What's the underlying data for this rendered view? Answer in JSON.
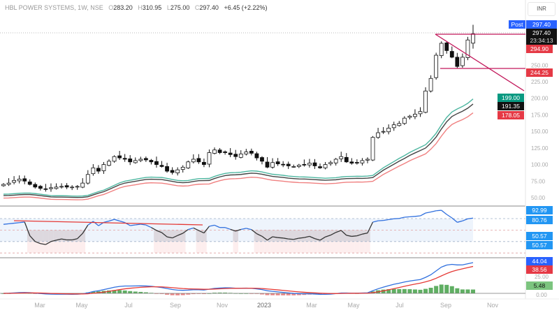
{
  "header": {
    "symbol": "HBL POWER SYSTEMS, 1W, NSE",
    "open_key": "O",
    "open": "283.20",
    "high_key": "H",
    "high": "310.95",
    "low_key": "L",
    "low": "275.00",
    "close_key": "C",
    "close": "297.40",
    "change": "+6.45 (+2.22%)"
  },
  "currency": "INR",
  "price_labels": {
    "post_tag": "Post",
    "post_price": "297.40",
    "last_price": "297.40",
    "countdown": "23:34:13",
    "alert_1": "294.90",
    "support": "244.25",
    "ema_fast": "199.00",
    "ema_mid": "191.35",
    "ema_slow": "178.05"
  },
  "rsi_labels": [
    "92.99",
    "80.76",
    "50.57",
    "50.57"
  ],
  "macd_labels": {
    "macd": "44.04",
    "signal": "38.56",
    "tick": "25.00",
    "hist": "5.48",
    "zero": "0.00"
  },
  "colors": {
    "ema_fast": "#4db6a0",
    "ema_mid": "#444444",
    "ema_slow": "#f08080",
    "trend": "#c2185b",
    "rsi_high": "#2f6fde",
    "rsi_low": "#333333",
    "macd": "#2f6fde",
    "signal": "#e53935",
    "hist_up": "#43a047",
    "hist_down": "#e57373"
  },
  "chart_data": {
    "type": "candlestick",
    "title": "HBL POWER SYSTEMS, 1W, NSE",
    "ylim": [
      40,
      310
    ],
    "y_ticks": [
      "50.00",
      "75.00",
      "100.00",
      "125.00",
      "150.00",
      "175.00",
      "200.00",
      "225.00",
      "250.00"
    ],
    "x_ticks": [
      "Mar",
      "May",
      "Jul",
      "Sep",
      "Nov",
      "2023",
      "Mar",
      "May",
      "Jul",
      "Sep",
      "Nov"
    ],
    "closes": [
      70,
      72,
      76,
      78,
      75,
      70,
      66,
      64,
      63,
      65,
      66,
      67,
      66,
      66,
      67,
      72,
      85,
      95,
      90,
      100,
      105,
      112,
      110,
      108,
      104,
      106,
      108,
      107,
      104,
      100,
      97,
      90,
      88,
      92,
      96,
      104,
      108,
      104,
      100,
      118,
      122,
      118,
      118,
      115,
      112,
      116,
      119,
      117,
      110,
      105,
      96,
      103,
      101,
      100,
      98,
      97,
      99,
      100,
      102,
      98,
      95,
      100,
      103,
      108,
      112,
      104,
      102,
      103,
      106,
      108,
      141,
      148,
      150,
      155,
      160,
      162,
      170,
      173,
      176,
      180,
      211,
      230,
      265,
      283,
      272,
      262,
      248,
      262,
      288,
      297.4
    ],
    "last_candle": {
      "open": 283.2,
      "high": 310.95,
      "low": 275.0,
      "close": 297.4
    },
    "lines": {
      "horizontal_resistance": 297,
      "horizontal_support": 244.25
    },
    "rsi_levels": [
      80,
      60,
      40,
      20
    ],
    "macd_ticks": [
      25,
      0
    ]
  }
}
